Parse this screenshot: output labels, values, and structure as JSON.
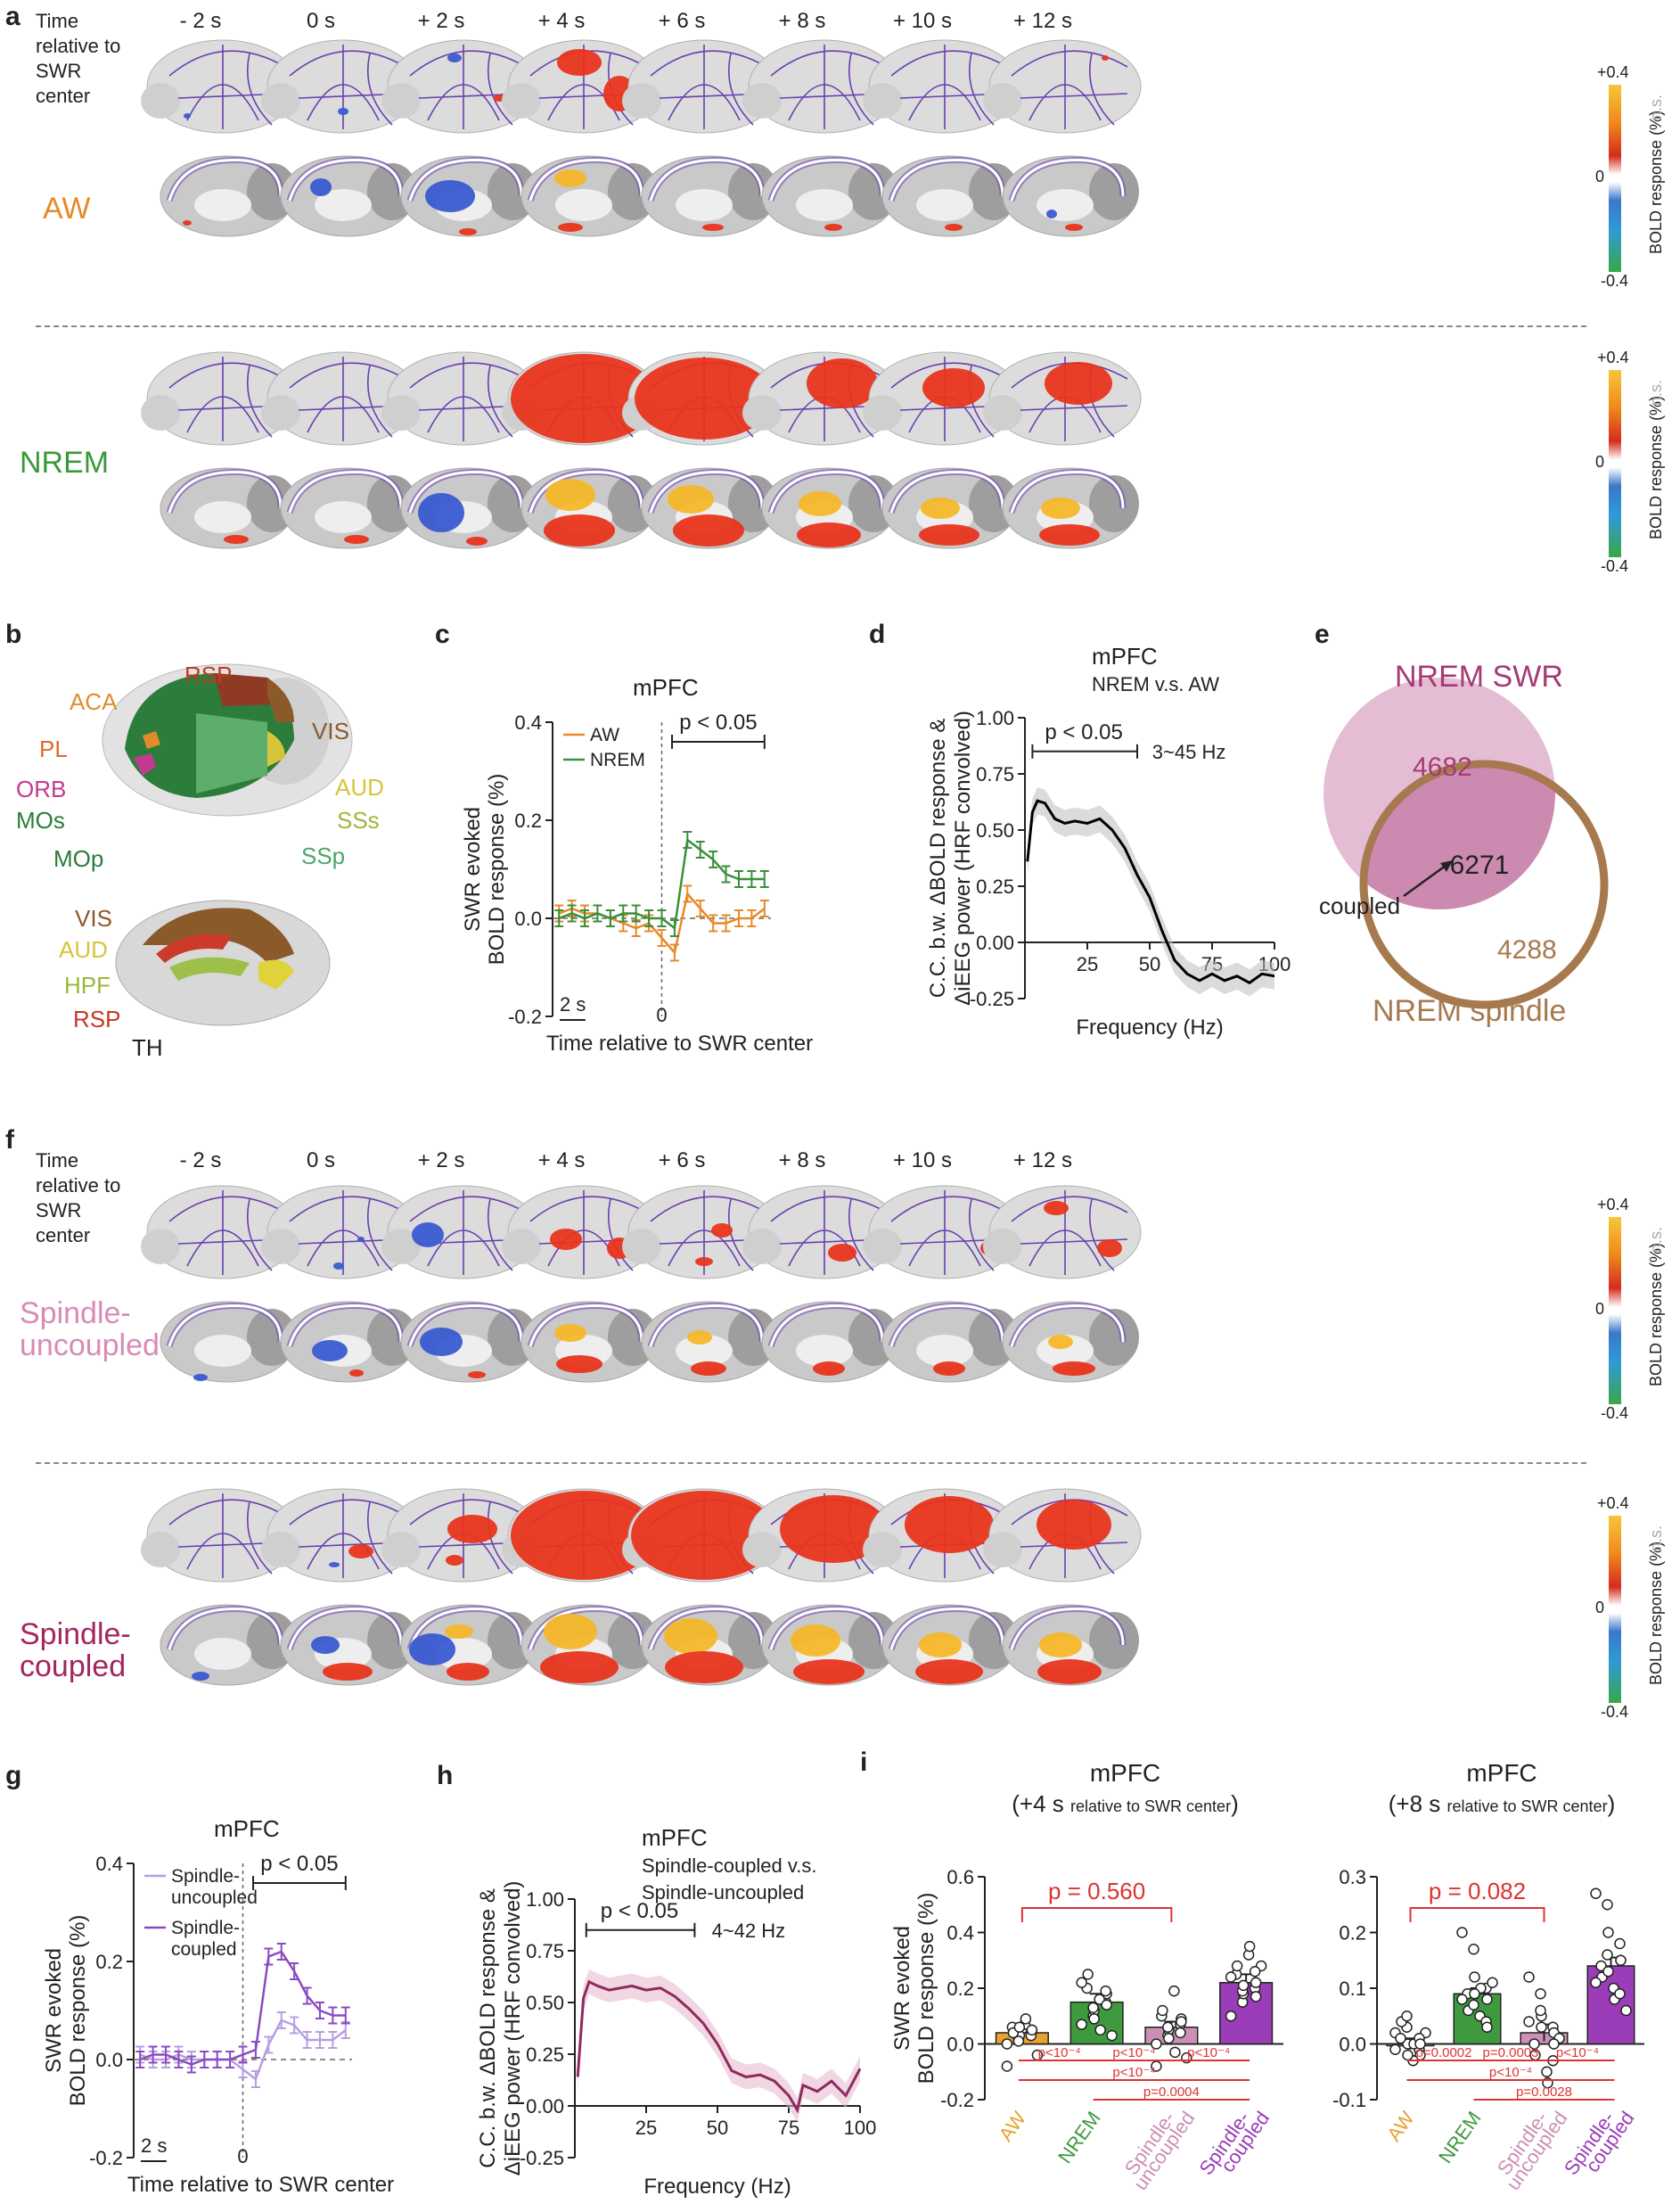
{
  "panel_a": {
    "letter": "a",
    "time_header": [
      "Time",
      "relative to",
      "SWR",
      "center"
    ],
    "timepoints": [
      "- 2 s",
      "0 s",
      "+ 2 s",
      "+ 4 s",
      "+ 6 s",
      "+ 8 s",
      "+ 10 s",
      "+ 12 s"
    ],
    "states": [
      "AW",
      "NREM"
    ],
    "state_colors": [
      "#e8892a",
      "#3a9a3a"
    ]
  },
  "colorbar": {
    "max": "+0.4",
    "mid": "0",
    "min": "-0.4",
    "title": "BOLD response (%)",
    "ns": "n.s."
  },
  "panel_b": {
    "letter": "b",
    "top_labels": [
      "RSP",
      "ACA",
      "VIS",
      "PL",
      "ORB",
      "AUD",
      "MOs",
      "SSs",
      "MOp",
      "SSp"
    ],
    "sag_labels": [
      "VIS",
      "AUD",
      "HPF",
      "RSP",
      "TH"
    ]
  },
  "panel_c": {
    "letter": "c",
    "chart_data": {
      "type": "line",
      "title": "mPFC",
      "ylabel": "SWR evoked BOLD response (%)",
      "xlabel": "Time relative to SWR center",
      "ylim": [
        -0.2,
        0.4
      ],
      "yticks": [
        "0.4",
        "0.2",
        "0.0",
        "-0.2"
      ],
      "x_zero_label": "0",
      "scalebar_label": "2 s",
      "sig_label": "p < 0.05",
      "x": [
        -8,
        -7,
        -6,
        -5,
        -4,
        -3,
        -2,
        -1,
        0,
        1,
        2,
        3,
        4,
        5,
        6,
        7,
        8
      ],
      "series": [
        {
          "name": "AW",
          "color": "#e8892a",
          "values": [
            0.01,
            0.02,
            0.01,
            0.01,
            0.0,
            -0.01,
            -0.02,
            -0.01,
            -0.04,
            -0.07,
            0.05,
            0.02,
            -0.01,
            -0.01,
            0.0,
            0.0,
            0.02
          ]
        },
        {
          "name": "NREM",
          "color": "#3a8f3a",
          "values": [
            0.0,
            0.01,
            0.0,
            0.01,
            0.0,
            0.01,
            0.01,
            0.0,
            0.0,
            -0.02,
            0.16,
            0.14,
            0.12,
            0.09,
            0.08,
            0.08,
            0.08
          ]
        }
      ]
    }
  },
  "panel_d": {
    "letter": "d",
    "chart_data": {
      "type": "line",
      "title": "mPFC",
      "subtitle": "NREM v.s. AW",
      "ylabel": "C.C. b.w. ΔBOLD response & ΔiEEG power (HRF convolved)",
      "ylabel_lines": [
        "C.C. b.w. ΔBOLD response &",
        "ΔiEEG power (HRF convolved)"
      ],
      "xlabel": "Frequency (Hz)",
      "ylim": [
        -0.25,
        1.0
      ],
      "yticks": [
        "1.00",
        "0.75",
        "0.50",
        "0.25",
        "0.00",
        "-0.25"
      ],
      "xticks": [
        "25",
        "50",
        "75",
        "100"
      ],
      "sig_label": "p < 0.05",
      "band_label": "3~45 Hz",
      "x": [
        1,
        3,
        5,
        8,
        12,
        16,
        20,
        25,
        30,
        35,
        40,
        45,
        50,
        55,
        60,
        65,
        70,
        75,
        80,
        85,
        90,
        95,
        100
      ],
      "values": [
        0.36,
        0.58,
        0.63,
        0.62,
        0.55,
        0.53,
        0.54,
        0.53,
        0.55,
        0.5,
        0.42,
        0.3,
        0.2,
        0.05,
        -0.08,
        -0.14,
        -0.17,
        -0.14,
        -0.17,
        -0.15,
        -0.18,
        -0.14,
        -0.15
      ],
      "color": "#000000"
    }
  },
  "panel_e": {
    "letter": "e",
    "title_top": "NREM SWR",
    "title_bottom": "NREM spindle",
    "count_swr_only": "4682",
    "count_overlap": "6271",
    "count_spindle_only": "4288",
    "arrow_label": "coupled",
    "swr_color": "#a63a74",
    "spindle_color": "#a7794f"
  },
  "panel_f": {
    "letter": "f",
    "time_header": [
      "Time",
      "relative to",
      "SWR",
      "center"
    ],
    "timepoints": [
      "- 2 s",
      "0 s",
      "+ 2 s",
      "+ 4 s",
      "+ 6 s",
      "+ 8 s",
      "+ 10 s",
      "+ 12 s"
    ],
    "states": [
      [
        "Spindle-",
        "uncoupled"
      ],
      [
        "Spindle-",
        "coupled"
      ]
    ],
    "state_colors": [
      "#d98bb5",
      "#a3265f"
    ]
  },
  "panel_g": {
    "letter": "g",
    "chart_data": {
      "type": "line",
      "title": "mPFC",
      "ylabel": "SWR evoked BOLD response (%)",
      "xlabel": "Time relative to SWR center",
      "ylim": [
        -0.2,
        0.4
      ],
      "yticks": [
        "0.4",
        "0.2",
        "0.0",
        "-0.2"
      ],
      "x_zero_label": "0",
      "scalebar_label": "2 s",
      "sig_label": "p < 0.05",
      "legend": [
        [
          "Spindle-",
          "uncoupled"
        ],
        [
          "Spindle-",
          "coupled"
        ]
      ],
      "x": [
        -8,
        -7,
        -6,
        -5,
        -4,
        -3,
        -2,
        -1,
        0,
        1,
        2,
        3,
        4,
        5,
        6,
        7,
        8
      ],
      "series": [
        {
          "name": "Spindle-uncoupled",
          "color": "#b89ee0",
          "values": [
            0.01,
            0.0,
            0.0,
            0.01,
            0.0,
            0.0,
            0.0,
            0.0,
            -0.02,
            -0.04,
            0.03,
            0.08,
            0.07,
            0.04,
            0.04,
            0.04,
            0.06
          ]
        },
        {
          "name": "Spindle-coupled",
          "color": "#8a4bc2",
          "values": [
            0.0,
            0.01,
            0.01,
            0.0,
            -0.01,
            0.0,
            0.0,
            0.0,
            0.01,
            0.02,
            0.21,
            0.22,
            0.18,
            0.13,
            0.1,
            0.09,
            0.09
          ]
        }
      ]
    }
  },
  "panel_h": {
    "letter": "h",
    "chart_data": {
      "type": "line",
      "title": "mPFC",
      "subtitle": [
        "Spindle-coupled v.s.",
        "Spindle-uncoupled"
      ],
      "ylabel_lines": [
        "C.C. b.w. ΔBOLD response &",
        "ΔiEEG power (HRF convolved)"
      ],
      "xlabel": "Frequency (Hz)",
      "ylim": [
        -0.25,
        1.0
      ],
      "yticks": [
        "1.00",
        "0.75",
        "0.50",
        "0.25",
        "0.00",
        "-0.25"
      ],
      "xticks": [
        "25",
        "50",
        "75",
        "100"
      ],
      "sig_label": "p < 0.05",
      "band_label": "4~42 Hz",
      "x": [
        1,
        3,
        5,
        8,
        12,
        16,
        20,
        25,
        30,
        35,
        40,
        45,
        50,
        55,
        60,
        65,
        70,
        75,
        78,
        80,
        85,
        90,
        95,
        100
      ],
      "values": [
        0.14,
        0.52,
        0.6,
        0.58,
        0.56,
        0.57,
        0.58,
        0.56,
        0.57,
        0.53,
        0.47,
        0.4,
        0.3,
        0.17,
        0.14,
        0.15,
        0.12,
        0.05,
        -0.02,
        0.1,
        0.07,
        0.12,
        0.05,
        0.18
      ],
      "color": "#8f2a5c"
    }
  },
  "panel_i": {
    "letter": "i",
    "chart_data": [
      {
        "type": "bar",
        "title": "mPFC",
        "subtitle_main": "(+4 s",
        "subtitle_small": "relative to SWR center",
        "subtitle_close": ")",
        "ylabel": "SWR evoked BOLD response (%)",
        "ylim": [
          -0.2,
          0.6
        ],
        "yticks": [
          "0.6",
          "0.4",
          "0.2",
          "0.0",
          "-0.2"
        ],
        "categories": [
          "AW",
          "NREM",
          "Spindle-uncoupled",
          "Spindle-coupled"
        ],
        "category_lines": [
          [
            "AW"
          ],
          [
            "NREM"
          ],
          [
            "Spindle-",
            "uncoupled"
          ],
          [
            "Spindle-",
            "coupled"
          ]
        ],
        "category_colors": [
          "#e8a230",
          "#3f9a3f",
          "#cc8fb5",
          "#9b3cb8"
        ],
        "values": [
          0.04,
          0.15,
          0.06,
          0.22
        ],
        "sem": [
          0.02,
          0.03,
          0.02,
          0.03
        ],
        "points": [
          [
            0.0,
            0.02,
            0.03,
            0.04,
            0.05,
            0.06,
            0.04,
            0.07,
            0.09,
            -0.04,
            -0.08,
            0.01,
            0.06,
            0.03,
            0.05
          ],
          [
            0.07,
            0.1,
            0.12,
            0.15,
            0.18,
            0.2,
            0.25,
            0.16,
            0.05,
            0.03,
            0.22,
            0.13,
            0.09,
            0.19,
            0.14
          ],
          [
            0.0,
            0.03,
            0.05,
            0.07,
            0.09,
            0.1,
            0.12,
            0.19,
            -0.03,
            -0.05,
            -0.08,
            0.06,
            0.02,
            0.04,
            0.08
          ],
          [
            0.1,
            0.15,
            0.18,
            0.2,
            0.22,
            0.25,
            0.28,
            0.32,
            0.35,
            0.28,
            0.24,
            0.19,
            0.21,
            0.26,
            0.17
          ]
        ],
        "top_comparison": "p = 0.560",
        "bottom_pvals": [
          "p<10⁻⁴",
          "p<10⁻⁴",
          "p<10⁻⁴",
          "p<10⁻⁴",
          "p=0.0004"
        ]
      },
      {
        "type": "bar",
        "title": "mPFC",
        "subtitle_main": "(+8 s",
        "subtitle_small": "relative to SWR center",
        "subtitle_close": ")",
        "ylim": [
          -0.1,
          0.3
        ],
        "yticks": [
          "0.3",
          "0.2",
          "0.1",
          "0.0",
          "-0.1"
        ],
        "categories": [
          "AW",
          "NREM",
          "Spindle-uncoupled",
          "Spindle-coupled"
        ],
        "category_lines": [
          [
            "AW"
          ],
          [
            "NREM"
          ],
          [
            "Spindle-",
            "uncoupled"
          ],
          [
            "Spindle-",
            "coupled"
          ]
        ],
        "category_colors": [
          "#e8a230",
          "#3f9a3f",
          "#cc8fb5",
          "#9b3cb8"
        ],
        "values": [
          0.0,
          0.09,
          0.02,
          0.14
        ],
        "sem": [
          0.01,
          0.01,
          0.015,
          0.015
        ],
        "points": [
          [
            0.02,
            0.03,
            0.0,
            -0.01,
            -0.02,
            0.01,
            0.04,
            -0.03,
            0.0,
            0.02,
            -0.01,
            0.05,
            -0.02,
            0.01,
            0.0
          ],
          [
            0.2,
            0.17,
            0.12,
            0.1,
            0.08,
            0.09,
            0.06,
            0.05,
            0.1,
            0.11,
            0.08,
            0.07,
            0.09,
            0.04,
            0.03
          ],
          [
            0.12,
            0.09,
            0.05,
            0.03,
            0.02,
            0.0,
            -0.02,
            -0.05,
            -0.07,
            0.01,
            0.04,
            0.06,
            0.03,
            -0.03,
            0.0
          ],
          [
            0.27,
            0.25,
            0.2,
            0.18,
            0.15,
            0.14,
            0.12,
            0.1,
            0.08,
            0.06,
            0.11,
            0.16,
            0.13,
            0.09,
            0.15
          ]
        ],
        "top_comparison": "p = 0.082",
        "bottom_pvals": [
          "p=0.0002",
          "p=0.0003",
          "p<10⁻⁴",
          "p<10⁻⁴",
          "p=0.0028"
        ]
      }
    ]
  }
}
